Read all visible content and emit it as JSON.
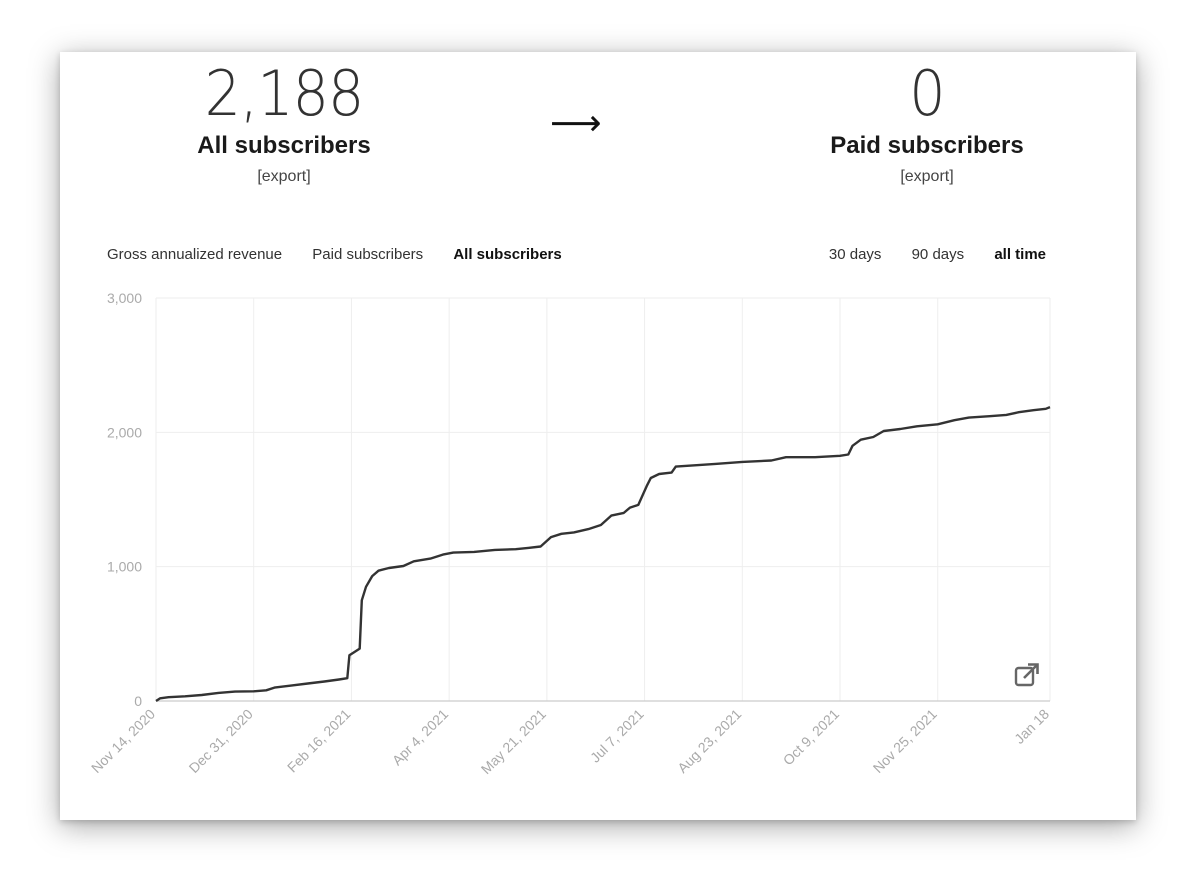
{
  "summary": {
    "all_subscribers": {
      "count": "2,188",
      "label": "All subscribers",
      "export": "[export]"
    },
    "arrow": "⟶",
    "paid_subscribers": {
      "count": "0",
      "label": "Paid subscribers",
      "export": "[export]"
    }
  },
  "metric_tabs": [
    {
      "label": "Gross annualized revenue",
      "active": false
    },
    {
      "label": "Paid subscribers",
      "active": false
    },
    {
      "label": "All subscribers",
      "active": true
    }
  ],
  "range_tabs": [
    {
      "label": "30 days",
      "active": false
    },
    {
      "label": "90 days",
      "active": false
    },
    {
      "label": "all time",
      "active": true
    }
  ],
  "icons": {
    "open_external": "external-link-icon"
  },
  "colors": {
    "line": "#333333",
    "grid": "#eeeeee",
    "tick": "#aaaaaa"
  },
  "chart_data": {
    "type": "line",
    "ylim": [
      0,
      3000
    ],
    "y_ticks": [
      "0",
      "1,000",
      "2,000",
      "3,000"
    ],
    "y_tick_values": [
      0,
      1000,
      2000,
      3000
    ],
    "x_ticks": [
      "Nov 14, 2020",
      "Dec 31, 2020",
      "Feb 16, 2021",
      "Apr 4, 2021",
      "May 21, 2021",
      "Jul 7, 2021",
      "Aug 23, 2021",
      "Oct 9, 2021",
      "Nov 25, 2021",
      "Jan 18"
    ],
    "x_tick_dates": [
      "2020-11-14",
      "2020-12-31",
      "2021-02-16",
      "2021-04-04",
      "2021-05-21",
      "2021-07-07",
      "2021-08-23",
      "2021-10-09",
      "2021-11-25",
      "2022-01-18"
    ],
    "grid": true,
    "series": [
      {
        "points": [
          [
            "2020-11-14",
            0
          ],
          [
            "2020-11-16",
            20
          ],
          [
            "2020-11-20",
            28
          ],
          [
            "2020-11-28",
            35
          ],
          [
            "2020-12-06",
            45
          ],
          [
            "2020-12-14",
            60
          ],
          [
            "2020-12-22",
            70
          ],
          [
            "2020-12-31",
            72
          ],
          [
            "2021-01-06",
            80
          ],
          [
            "2021-01-10",
            100
          ],
          [
            "2021-01-18",
            115
          ],
          [
            "2021-01-26",
            130
          ],
          [
            "2021-02-03",
            145
          ],
          [
            "2021-02-10",
            160
          ],
          [
            "2021-02-14",
            170
          ],
          [
            "2021-02-15",
            340
          ],
          [
            "2021-02-17",
            360
          ],
          [
            "2021-02-20",
            390
          ],
          [
            "2021-02-21",
            750
          ],
          [
            "2021-02-23",
            850
          ],
          [
            "2021-02-26",
            930
          ],
          [
            "2021-03-01",
            970
          ],
          [
            "2021-03-06",
            990
          ],
          [
            "2021-03-13",
            1005
          ],
          [
            "2021-03-18",
            1040
          ],
          [
            "2021-03-26",
            1060
          ],
          [
            "2021-04-01",
            1090
          ],
          [
            "2021-04-06",
            1105
          ],
          [
            "2021-04-16",
            1110
          ],
          [
            "2021-04-26",
            1125
          ],
          [
            "2021-05-06",
            1130
          ],
          [
            "2021-05-12",
            1140
          ],
          [
            "2021-05-18",
            1150
          ],
          [
            "2021-05-23",
            1220
          ],
          [
            "2021-05-28",
            1245
          ],
          [
            "2021-06-03",
            1255
          ],
          [
            "2021-06-10",
            1280
          ],
          [
            "2021-06-16",
            1310
          ],
          [
            "2021-06-21",
            1380
          ],
          [
            "2021-06-27",
            1400
          ],
          [
            "2021-06-30",
            1440
          ],
          [
            "2021-07-04",
            1460
          ],
          [
            "2021-07-06",
            1530
          ],
          [
            "2021-07-08",
            1600
          ],
          [
            "2021-07-10",
            1660
          ],
          [
            "2021-07-14",
            1690
          ],
          [
            "2021-07-20",
            1700
          ],
          [
            "2021-07-22",
            1745
          ],
          [
            "2021-08-01",
            1755
          ],
          [
            "2021-08-10",
            1765
          ],
          [
            "2021-08-23",
            1780
          ],
          [
            "2021-09-06",
            1790
          ],
          [
            "2021-09-13",
            1815
          ],
          [
            "2021-09-27",
            1815
          ],
          [
            "2021-10-09",
            1825
          ],
          [
            "2021-10-13",
            1835
          ],
          [
            "2021-10-15",
            1900
          ],
          [
            "2021-10-19",
            1945
          ],
          [
            "2021-10-25",
            1965
          ],
          [
            "2021-10-30",
            2010
          ],
          [
            "2021-11-07",
            2025
          ],
          [
            "2021-11-15",
            2045
          ],
          [
            "2021-11-25",
            2060
          ],
          [
            "2021-12-03",
            2090
          ],
          [
            "2021-12-10",
            2110
          ],
          [
            "2021-12-20",
            2120
          ],
          [
            "2021-12-28",
            2130
          ],
          [
            "2022-01-03",
            2150
          ],
          [
            "2022-01-10",
            2165
          ],
          [
            "2022-01-16",
            2175
          ],
          [
            "2022-01-18",
            2188
          ]
        ]
      }
    ]
  }
}
